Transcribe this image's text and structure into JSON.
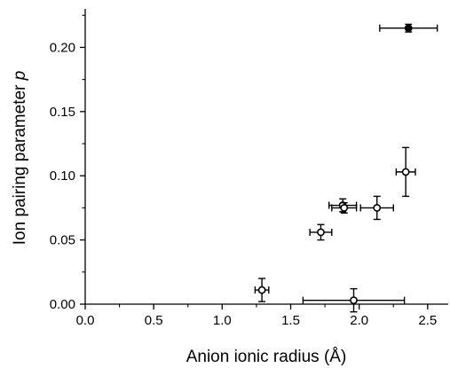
{
  "chart_data": {
    "type": "scatter",
    "xlabel": "Anion ionic radius (Å)",
    "ylabel_prefix": "Ion pairing parameter ",
    "ylabel_symbol": "p",
    "xlim": [
      0.0,
      2.65
    ],
    "ylim": [
      0.0,
      0.23
    ],
    "x_ticks": [
      0.0,
      0.5,
      1.0,
      1.5,
      2.0,
      2.5
    ],
    "x_tick_labels": [
      "0.0",
      "0.5",
      "1.0",
      "1.5",
      "2.0",
      "2.5"
    ],
    "x_minor_ticks": [
      0.25,
      0.75,
      1.25,
      1.75,
      2.25
    ],
    "y_ticks": [
      0.0,
      0.05,
      0.1,
      0.15,
      0.2
    ],
    "y_tick_labels": [
      "0.00",
      "0.05",
      "0.10",
      "0.15",
      "0.20"
    ],
    "y_minor_ticks": [
      0.025,
      0.075,
      0.125,
      0.175,
      0.225
    ],
    "grid": false,
    "points": [
      {
        "x": 1.29,
        "y": 0.011,
        "xerr": 0.05,
        "yerr": 0.009,
        "filled": false
      },
      {
        "x": 1.96,
        "y": 0.003,
        "xerr": 0.37,
        "yerr": 0.009,
        "filled": false
      },
      {
        "x": 1.72,
        "y": 0.056,
        "xerr": 0.08,
        "yerr": 0.006,
        "filled": false
      },
      {
        "x": 1.88,
        "y": 0.077,
        "xerr": 0.1,
        "yerr": 0.005,
        "filled": false
      },
      {
        "x": 1.89,
        "y": 0.075,
        "xerr": 0.09,
        "yerr": 0.004,
        "filled": false
      },
      {
        "x": 2.13,
        "y": 0.075,
        "xerr": 0.12,
        "yerr": 0.009,
        "filled": false
      },
      {
        "x": 2.34,
        "y": 0.103,
        "xerr": 0.07,
        "yerr": 0.019,
        "filled": false
      },
      {
        "x": 2.36,
        "y": 0.215,
        "xerr": 0.21,
        "yerr": 0.003,
        "filled": true
      }
    ],
    "colors": {
      "axis": "#000000",
      "marker_fill_open": "#ffffff",
      "marker_fill_solid": "#000000"
    }
  }
}
